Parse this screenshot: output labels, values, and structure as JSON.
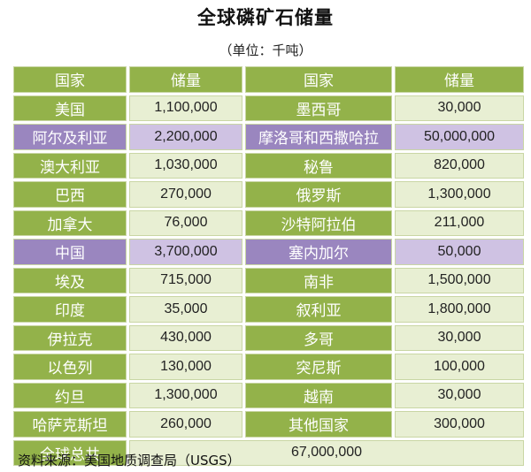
{
  "title": "全球磷矿石储量",
  "unit": "（单位：千吨）",
  "header": {
    "country": "国家",
    "reserve": "储量"
  },
  "chart_data": {
    "type": "table",
    "title": "全球磷矿石储量",
    "unit": "（单位：千吨）",
    "columns": [
      "国家",
      "储量",
      "国家",
      "储量"
    ],
    "rows": [
      {
        "c1": "美国",
        "v1": "1,100,000",
        "c2": "墨西哥",
        "v2": "30,000"
      },
      {
        "c1": "阿尔及利亚",
        "v1": "2,200,000",
        "c2": "摩洛哥和西撒哈拉",
        "v2": "50,000,000"
      },
      {
        "c1": "澳大利亚",
        "v1": "1,030,000",
        "c2": "秘鲁",
        "v2": "820,000"
      },
      {
        "c1": "巴西",
        "v1": "270,000",
        "c2": "俄罗斯",
        "v2": "1,300,000"
      },
      {
        "c1": "加拿大",
        "v1": "76,000",
        "c2": "沙特阿拉伯",
        "v2": "211,000"
      },
      {
        "c1": "中国",
        "v1": "3,700,000",
        "c2": "塞内加尔",
        "v2": "50,000"
      },
      {
        "c1": "埃及",
        "v1": "715,000",
        "c2": "南非",
        "v2": "1,500,000"
      },
      {
        "c1": "印度",
        "v1": "35,000",
        "c2": "叙利亚",
        "v2": "1,800,000"
      },
      {
        "c1": "伊拉克",
        "v1": "430,000",
        "c2": "多哥",
        "v2": "30,000"
      },
      {
        "c1": "以色列",
        "v1": "130,000",
        "c2": "突尼斯",
        "v2": "100,000"
      },
      {
        "c1": "约旦",
        "v1": "1,300,000",
        "c2": "越南",
        "v2": "30,000"
      },
      {
        "c1": "哈萨克斯坦",
        "v1": "260,000",
        "c2": "其他国家",
        "v2": "300,000"
      }
    ],
    "highlighted_rows": [
      1,
      5
    ],
    "total": {
      "label": "全球总共",
      "value": "67,000,000"
    }
  },
  "source": "资料来源：美国地质调查局（USGS）",
  "colors": {
    "green": "#93b24a",
    "green_light": "#e8efd3",
    "purple": "#9a86bf",
    "purple_light": "#cfc2e3"
  }
}
